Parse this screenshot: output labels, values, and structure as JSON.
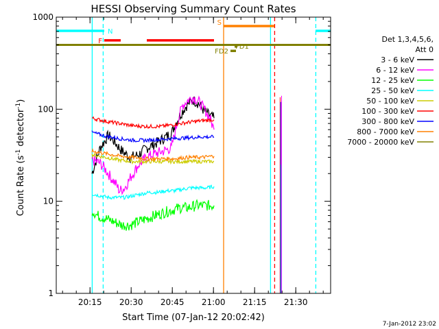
{
  "chart_data": {
    "type": "line",
    "title": "HESSI Observing Summary Count Rates",
    "xlabel": "Start Time (07-Jan-12 20:02:42)",
    "ylabel": "Count Rate (s",
    "ylabel_sup": "-1",
    "ylabel_mid": " detector",
    "ylabel_sup2": "-1",
    "ylabel_end": ")",
    "y_scale": "log",
    "ylim": [
      1,
      1000
    ],
    "y_ticks": [
      {
        "value": 1,
        "label": "1"
      },
      {
        "value": 10,
        "label": "10"
      },
      {
        "value": 100,
        "label": "100"
      },
      {
        "value": 1000,
        "label": "1000"
      }
    ],
    "x_unit": "minutes after 20:02:42",
    "xlim": [
      0,
      100
    ],
    "x_ticks": [
      {
        "value": 12.3,
        "label": "20:15"
      },
      {
        "value": 27.3,
        "label": "20:30"
      },
      {
        "value": 42.3,
        "label": "20:45"
      },
      {
        "value": 57.3,
        "label": "21:00"
      },
      {
        "value": 72.3,
        "label": "21:15"
      },
      {
        "value": 87.3,
        "label": "21:30"
      }
    ],
    "legend_title": "Det 1,3,4,5,6,",
    "legend_subtitle": "Att 0",
    "legend_position": "right",
    "series": [
      {
        "name": "3 - 6 keV",
        "color": "#000000",
        "points": [
          [
            13,
            20
          ],
          [
            16,
            38
          ],
          [
            19,
            52
          ],
          [
            21,
            45
          ],
          [
            24,
            35
          ],
          [
            27,
            30
          ],
          [
            30,
            32
          ],
          [
            33,
            38
          ],
          [
            36,
            42
          ],
          [
            39,
            48
          ],
          [
            42,
            55
          ],
          [
            44,
            75
          ],
          [
            46,
            95
          ],
          [
            48,
            115
          ],
          [
            50,
            125
          ],
          [
            52,
            115
          ],
          [
            54,
            95
          ],
          [
            56,
            85
          ],
          [
            57.5,
            80
          ]
        ]
      },
      {
        "name": "6 - 12 keV",
        "color": "#ff00ff",
        "points": [
          [
            13,
            28
          ],
          [
            16,
            26
          ],
          [
            18,
            22
          ],
          [
            20,
            18
          ],
          [
            22,
            15
          ],
          [
            23,
            13
          ],
          [
            25,
            14
          ],
          [
            27,
            18
          ],
          [
            30,
            25
          ],
          [
            33,
            30
          ],
          [
            36,
            33
          ],
          [
            39,
            35
          ],
          [
            42,
            38
          ],
          [
            44,
            70
          ],
          [
            46,
            110
          ],
          [
            48,
            125
          ],
          [
            50,
            135
          ],
          [
            52,
            120
          ],
          [
            54,
            100
          ],
          [
            56,
            80
          ],
          [
            57.5,
            60
          ]
        ]
      },
      {
        "name": "12 - 25 keV",
        "color": "#00ff00",
        "points": [
          [
            13,
            8
          ],
          [
            15,
            7
          ],
          [
            18,
            6.5
          ],
          [
            21,
            6
          ],
          [
            24,
            5.5
          ],
          [
            27,
            5.5
          ],
          [
            30,
            6
          ],
          [
            33,
            6.5
          ],
          [
            36,
            7
          ],
          [
            39,
            7.5
          ],
          [
            42,
            8
          ],
          [
            45,
            8.5
          ],
          [
            48,
            8.5
          ],
          [
            51,
            9
          ],
          [
            54,
            9
          ],
          [
            57.5,
            9
          ]
        ]
      },
      {
        "name": "25 - 50 keV",
        "color": "#00ffff",
        "points": [
          [
            13,
            12
          ],
          [
            16,
            11.5
          ],
          [
            19,
            11
          ],
          [
            22,
            11
          ],
          [
            25,
            11
          ],
          [
            28,
            11.5
          ],
          [
            31,
            12
          ],
          [
            34,
            12.5
          ],
          [
            37,
            12.5
          ],
          [
            40,
            13
          ],
          [
            43,
            13
          ],
          [
            46,
            13.5
          ],
          [
            49,
            14
          ],
          [
            52,
            14
          ],
          [
            55,
            14
          ],
          [
            57.5,
            14.5
          ]
        ]
      },
      {
        "name": "50 - 100 keV",
        "color": "#cccc00",
        "points": [
          [
            13,
            32
          ],
          [
            18,
            30
          ],
          [
            23,
            28
          ],
          [
            28,
            27
          ],
          [
            33,
            27
          ],
          [
            38,
            27
          ],
          [
            43,
            27
          ],
          [
            48,
            27
          ],
          [
            53,
            27
          ],
          [
            57.5,
            27
          ]
        ]
      },
      {
        "name": "100 - 300 keV",
        "color": "#ff0000",
        "points": [
          [
            13,
            80
          ],
          [
            18,
            74
          ],
          [
            23,
            70
          ],
          [
            28,
            66
          ],
          [
            33,
            65
          ],
          [
            38,
            65
          ],
          [
            43,
            68
          ],
          [
            48,
            72
          ],
          [
            53,
            75
          ],
          [
            57.5,
            77
          ]
        ]
      },
      {
        "name": "300 - 800 keV",
        "color": "#0000ff",
        "points": [
          [
            13,
            56
          ],
          [
            18,
            51
          ],
          [
            23,
            48
          ],
          [
            28,
            46
          ],
          [
            33,
            46
          ],
          [
            38,
            47
          ],
          [
            43,
            48
          ],
          [
            48,
            49
          ],
          [
            53,
            50
          ],
          [
            57.5,
            50
          ]
        ]
      },
      {
        "name": "800 - 7000 keV",
        "color": "#ff8000",
        "points": [
          [
            13,
            35
          ],
          [
            18,
            33
          ],
          [
            23,
            31
          ],
          [
            28,
            30
          ],
          [
            33,
            29
          ],
          [
            38,
            29
          ],
          [
            43,
            29
          ],
          [
            48,
            30
          ],
          [
            53,
            30
          ],
          [
            57.5,
            31
          ]
        ]
      },
      {
        "name": "7000 - 20000 keV",
        "color": "#808000",
        "points": []
      }
    ],
    "flag_bars": [
      {
        "label": "N",
        "color": "#00ffff",
        "y": 710,
        "segments": [
          [
            0,
            17.5
          ],
          [
            94.5,
            100
          ]
        ]
      },
      {
        "label": "S",
        "color": "#ff8000",
        "y": 800,
        "segments": [
          [
            61,
            79.5
          ]
        ]
      },
      {
        "label": "F",
        "color": "#ff0000",
        "y": 560,
        "segments": [
          [
            17.5,
            23.5
          ],
          [
            33,
            57.5
          ]
        ]
      },
      {
        "label": "",
        "color": "#808000",
        "y": 500,
        "segments": [
          [
            0,
            100
          ]
        ]
      },
      {
        "label": "FD1",
        "color": "#808000",
        "y": 480,
        "segments": [
          [
            65,
            66
          ]
        ]
      },
      {
        "label": "FD2",
        "color": "#808000",
        "y": 430,
        "segments": [
          [
            63.5,
            65.5
          ]
        ]
      }
    ],
    "vertical_lines": [
      {
        "x": 13.1,
        "color": "#00ffff",
        "style": "solid"
      },
      {
        "x": 17.1,
        "color": "#00ffff",
        "style": "dashed"
      },
      {
        "x": 61.0,
        "color": "#ff8000",
        "style": "solid"
      },
      {
        "x": 78.1,
        "color": "#00ffff",
        "style": "solid"
      },
      {
        "x": 79.6,
        "color": "#ff0000",
        "style": "dashed"
      },
      {
        "x": 94.6,
        "color": "#00ffff",
        "style": "dashed"
      }
    ],
    "grid": false
  },
  "footer_date": "7-Jan-2012 23:02"
}
